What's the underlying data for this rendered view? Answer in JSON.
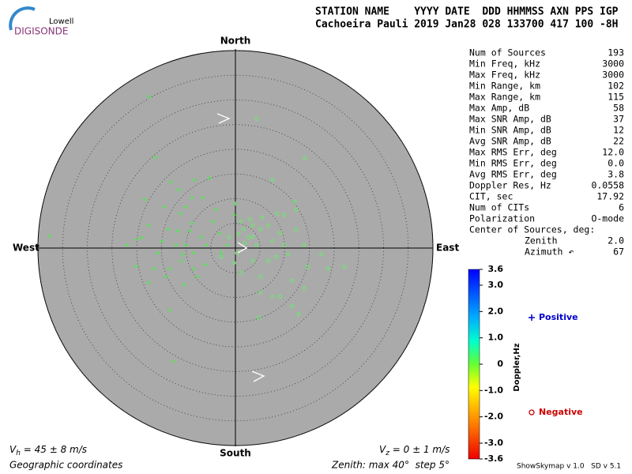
{
  "header": {
    "logo_top": "Lowell",
    "logo_bottom": "DIGISONDE",
    "columns": "STATION NAME    YYYY DATE  DDD HHMMSS AXN PPS IGP",
    "values": "Cachoeira Pauli 2019 Jan28 028 133700 417 100 -8H"
  },
  "chart_data": {
    "type": "skymap",
    "directions": {
      "north": "North",
      "south": "South",
      "east": "East",
      "west": "West"
    },
    "rlim": [
      0,
      40
    ],
    "rticks": [
      5,
      10,
      15,
      20,
      25,
      30,
      35,
      40
    ],
    "series": [
      {
        "name": "Positive",
        "marker": "+",
        "color": "#44ee44",
        "legend_color": "#0000cc",
        "x": [
          -17.4,
          -16.2,
          -13.1,
          -11.5,
          -8.3,
          -5.3,
          -18.4,
          -14.4,
          -10.1,
          -8.8,
          -6.7,
          -11.2,
          -4.0,
          -4.6,
          -8.8,
          -17.6,
          -13.6,
          -11.7,
          -9.3,
          -3.2,
          -6.9,
          -18.9,
          -20.0,
          -21.9,
          -14.9,
          -12.0,
          -10.1,
          -5.8,
          -1.6,
          -2.9,
          -20.2,
          -16.5,
          -13.3,
          -8.5,
          -6.1,
          -10.6,
          -7.7,
          -14.1,
          -17.6,
          -10.4,
          -13.3,
          -12.6,
          -37.6,
          0.0,
          -0.2,
          -10.9,
          -8.5,
          -15.7
        ],
        "y": [
          30.7,
          18.4,
          13.4,
          11.8,
          13.8,
          14.2,
          9.8,
          8.3,
          8.3,
          10.2,
          10.2,
          7.0,
          7.8,
          5.4,
          5.0,
          4.6,
          3.8,
          3.5,
          3.5,
          3.0,
          2.2,
          2.1,
          1.8,
          0.6,
          1.4,
          0.6,
          0.6,
          0.6,
          0.6,
          -1.0,
          -3.7,
          -4.2,
          -4.2,
          -4.2,
          -3.4,
          -1.3,
          -5.8,
          -5.8,
          -7.0,
          -7.4,
          -12.6,
          -22.9,
          2.4,
          9.0,
          6.7,
          -2.6,
          -1.0,
          -1.0
        ]
      },
      {
        "name": "Negative",
        "marker": "o",
        "color": "#66ee66",
        "legend_color": "#cc0000",
        "x": [
          4.3,
          14.1,
          7.5,
          12.0,
          12.3,
          8.5,
          9.9,
          5.4,
          2.9,
          1.1,
          3.5,
          6.7,
          1.6,
          5.1,
          12.2,
          9.1,
          0.6,
          2.7,
          3.5,
          -1.3,
          7.5,
          1.9,
          4.3,
          9.9,
          13.9,
          17.4,
          10.7,
          8.3,
          6.7,
          3.5,
          14.6,
          22.1,
          18.7,
          1.1,
          5.1,
          11.5,
          13.9,
          5.1,
          7.5,
          9.1,
          11.5,
          4.8,
          12.8,
          0.3,
          -2.9,
          -0.3
        ],
        "y": [
          26.2,
          18.2,
          13.8,
          9.4,
          7.8,
          7.0,
          6.7,
          6.2,
          5.8,
          5.4,
          4.6,
          4.6,
          3.8,
          3.8,
          3.8,
          3.0,
          2.9,
          2.2,
          2.2,
          2.2,
          1.4,
          1.0,
          0.6,
          0.6,
          0.6,
          -1.3,
          -1.3,
          -1.8,
          -2.6,
          -2.6,
          -3.8,
          -3.8,
          -4.2,
          -5.0,
          -5.8,
          -6.6,
          -8.2,
          -9.0,
          -9.8,
          -9.8,
          -11.8,
          -14.1,
          -13.4,
          -1.0,
          -1.8,
          -3.0
        ]
      }
    ],
    "colorbar": {
      "label": "Doppler,Hz",
      "lim": [
        -3.6,
        3.6
      ],
      "ticks": [
        3.6,
        {
          "value": 3,
          "label": "3.0"
        },
        {
          "value": 2,
          "label": "2.0"
        },
        {
          "value": 1,
          "label": "1.0"
        },
        0,
        {
          "value": -1,
          "label": "-1.0"
        },
        {
          "value": -2,
          "label": "-2.0"
        },
        {
          "value": -3,
          "label": "-3.0"
        },
        -3.6
      ]
    }
  },
  "stats": [
    {
      "label": "Num of Sources",
      "value": "193"
    },
    {
      "label": "Min Freq, kHz",
      "value": "3000"
    },
    {
      "label": "Max Freq, kHz",
      "value": "3000"
    },
    {
      "label": "Min Range, km",
      "value": "102"
    },
    {
      "label": "Max Range, km",
      "value": "115"
    },
    {
      "label": "Max Amp, dB",
      "value": "58"
    },
    {
      "label": "Max SNR Amp, dB",
      "value": "37"
    },
    {
      "label": "Min SNR Amp, dB",
      "value": "12"
    },
    {
      "label": "Avg SNR Amp, dB",
      "value": "22"
    },
    {
      "label": "Max RMS Err, deg",
      "value": "12.0"
    },
    {
      "label": "Min RMS Err, deg",
      "value": "0.0"
    },
    {
      "label": "Avg RMS Err, deg",
      "value": "3.8"
    },
    {
      "label": "Doppler Res, Hz",
      "value": "0.0558"
    },
    {
      "label": "CIT, sec",
      "value": "17.92"
    },
    {
      "label": "Num of CITs",
      "value": "6"
    },
    {
      "label": "Polarization",
      "value": "O-mode"
    }
  ],
  "center": {
    "title": "Center of Sources, deg:",
    "rows": [
      {
        "label": "Zenith",
        "value": "2.0"
      },
      {
        "label": "Azimuth ↶",
        "value": "67"
      }
    ]
  },
  "footer": {
    "vh_symbol": "V",
    "vh_sub": "h",
    "vh_text": " = 45 ± 8 m/s",
    "vz_symbol": "V",
    "vz_sub": "z",
    "vz_text": " = 0 ± 1 m/s",
    "coords": "Geographic coordinates",
    "zenith": "Zenith: max 40°  step 5°",
    "version": "ShowSkymap v 1.0   SD v 5.1"
  }
}
